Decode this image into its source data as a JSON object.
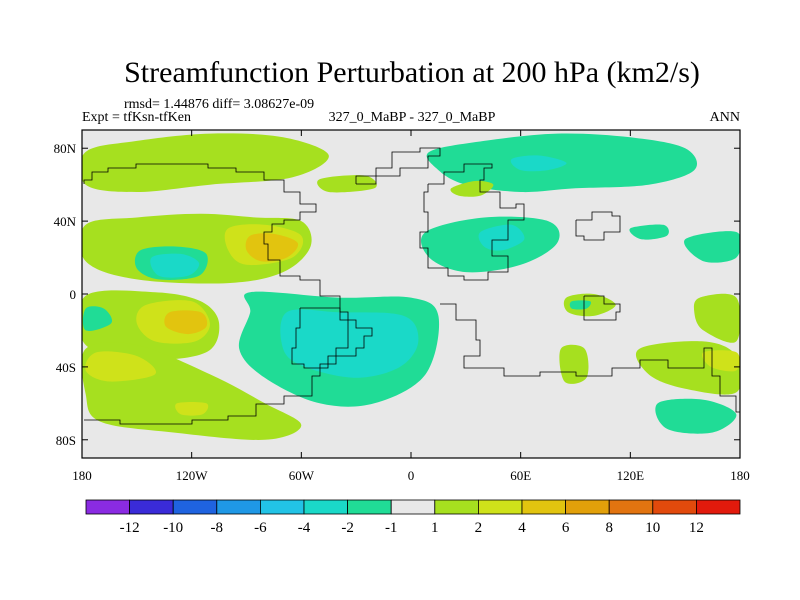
{
  "chart_data": {
    "type": "heatmap",
    "title": "Streamfunction Perturbation at 200 hPa (km2/s)",
    "stats_line": "rmsd= 1.44876 diff= 3.08627e-09",
    "left_label": "Expt = tfKsn-tfKen",
    "center_label": "327_0_MaBP - 327_0_MaBP",
    "right_label": "ANN",
    "xlim": [
      -180,
      180
    ],
    "ylim": [
      -90,
      90
    ],
    "x_ticks": [
      {
        "value": -180,
        "label": "180"
      },
      {
        "value": -120,
        "label": "120W"
      },
      {
        "value": -60,
        "label": "60W"
      },
      {
        "value": 0,
        "label": "0"
      },
      {
        "value": 60,
        "label": "60E"
      },
      {
        "value": 120,
        "label": "120E"
      },
      {
        "value": 180,
        "label": "180"
      }
    ],
    "y_ticks": [
      {
        "value": 80,
        "label": "80N"
      },
      {
        "value": 40,
        "label": "40N"
      },
      {
        "value": 0,
        "label": "0"
      },
      {
        "value": -40,
        "label": "40S"
      },
      {
        "value": -80,
        "label": "80S"
      }
    ],
    "colorbar": {
      "colors": [
        "#8a2be2",
        "#3a2bd8",
        "#1f63e0",
        "#1f98e6",
        "#22c3e6",
        "#1ad9c8",
        "#20dc96",
        "#e8e8e8",
        "#a6e01f",
        "#cfe21a",
        "#e2c40f",
        "#e2a00a",
        "#e27410",
        "#e24a0c",
        "#e21a0c"
      ],
      "labels": [
        "-12",
        "-10",
        "-8",
        "-6",
        "-4",
        "-2",
        "-1",
        "1",
        "2",
        "4",
        "6",
        "8",
        "10",
        "12"
      ]
    },
    "contour_regions": [
      {
        "level": 2,
        "color": "#a6e01f",
        "points": [
          [
            -178,
            78
          ],
          [
            -150,
            84
          ],
          [
            -110,
            88
          ],
          [
            -70,
            86
          ],
          [
            -45,
            76
          ],
          [
            -65,
            64
          ],
          [
            -110,
            60
          ],
          [
            -150,
            56
          ],
          [
            -178,
            60
          ]
        ]
      },
      {
        "level": -1,
        "color": "#20dc96",
        "points": [
          [
            10,
            78
          ],
          [
            40,
            84
          ],
          [
            80,
            88
          ],
          [
            120,
            86
          ],
          [
            150,
            80
          ],
          [
            155,
            68
          ],
          [
            130,
            60
          ],
          [
            90,
            58
          ],
          [
            60,
            56
          ],
          [
            30,
            60
          ],
          [
            15,
            68
          ]
        ]
      },
      {
        "level": -2,
        "color": "#1ad9c8",
        "points": [
          [
            55,
            74
          ],
          [
            70,
            76
          ],
          [
            85,
            72
          ],
          [
            75,
            68
          ],
          [
            60,
            68
          ]
        ]
      },
      {
        "level": 2,
        "color": "#a6e01f",
        "points": [
          [
            -178,
            38
          ],
          [
            -150,
            42
          ],
          [
            -115,
            44
          ],
          [
            -85,
            42
          ],
          [
            -60,
            40
          ],
          [
            -55,
            26
          ],
          [
            -70,
            12
          ],
          [
            -100,
            6
          ],
          [
            -150,
            8
          ],
          [
            -178,
            18
          ]
        ]
      },
      {
        "level": 4,
        "color": "#cfe21a",
        "points": [
          [
            -100,
            36
          ],
          [
            -80,
            38
          ],
          [
            -60,
            32
          ],
          [
            -65,
            20
          ],
          [
            -90,
            16
          ],
          [
            -100,
            24
          ]
        ]
      },
      {
        "level": 6,
        "color": "#e2c40f",
        "points": [
          [
            -88,
            32
          ],
          [
            -75,
            33
          ],
          [
            -62,
            28
          ],
          [
            -68,
            20
          ],
          [
            -82,
            18
          ],
          [
            -90,
            24
          ]
        ]
      },
      {
        "level": -1,
        "color": "#20dc96",
        "points": [
          [
            -148,
            24
          ],
          [
            -128,
            26
          ],
          [
            -112,
            22
          ],
          [
            -116,
            10
          ],
          [
            -138,
            8
          ],
          [
            -150,
            14
          ]
        ]
      },
      {
        "level": -2,
        "color": "#1ad9c8",
        "points": [
          [
            -142,
            20
          ],
          [
            -126,
            22
          ],
          [
            -116,
            17
          ],
          [
            -122,
            10
          ],
          [
            -138,
            10
          ]
        ]
      },
      {
        "level": 2,
        "color": "#a6e01f",
        "points": [
          [
            -50,
            63
          ],
          [
            -25,
            65
          ],
          [
            -20,
            58
          ],
          [
            -45,
            56
          ]
        ]
      },
      {
        "level": 2,
        "color": "#a6e01f",
        "points": [
          [
            22,
            58
          ],
          [
            35,
            62
          ],
          [
            45,
            60
          ],
          [
            38,
            54
          ],
          [
            26,
            54
          ]
        ]
      },
      {
        "level": -1,
        "color": "#20dc96",
        "points": [
          [
            8,
            34
          ],
          [
            40,
            42
          ],
          [
            75,
            40
          ],
          [
            80,
            28
          ],
          [
            60,
            16
          ],
          [
            30,
            12
          ],
          [
            10,
            20
          ]
        ]
      },
      {
        "level": -2,
        "color": "#1ad9c8",
        "points": [
          [
            38,
            34
          ],
          [
            55,
            38
          ],
          [
            62,
            30
          ],
          [
            50,
            24
          ],
          [
            40,
            26
          ]
        ]
      },
      {
        "level": -1,
        "color": "#20dc96",
        "points": [
          [
            120,
            36
          ],
          [
            138,
            38
          ],
          [
            140,
            32
          ],
          [
            126,
            30
          ]
        ]
      },
      {
        "level": -1,
        "color": "#20dc96",
        "points": [
          [
            150,
            30
          ],
          [
            178,
            34
          ],
          [
            178,
            20
          ],
          [
            160,
            18
          ]
        ]
      },
      {
        "level": 2,
        "color": "#a6e01f",
        "points": [
          [
            -178,
            -1
          ],
          [
            -140,
            1
          ],
          [
            -115,
            -4
          ],
          [
            -105,
            -16
          ],
          [
            -112,
            -32
          ],
          [
            -145,
            -36
          ],
          [
            -178,
            -28
          ]
        ]
      },
      {
        "level": 4,
        "color": "#cfe21a",
        "points": [
          [
            -145,
            -6
          ],
          [
            -120,
            -4
          ],
          [
            -110,
            -16
          ],
          [
            -118,
            -26
          ],
          [
            -140,
            -26
          ],
          [
            -150,
            -16
          ]
        ]
      },
      {
        "level": 6,
        "color": "#e2c40f",
        "points": [
          [
            -132,
            -10
          ],
          [
            -115,
            -10
          ],
          [
            -112,
            -18
          ],
          [
            -122,
            -22
          ],
          [
            -134,
            -18
          ]
        ]
      },
      {
        "level": -1,
        "color": "#20dc96",
        "points": [
          [
            -178,
            -8
          ],
          [
            -168,
            -8
          ],
          [
            -164,
            -16
          ],
          [
            -178,
            -20
          ]
        ]
      },
      {
        "level": -1,
        "color": "#20dc96",
        "points": [
          [
            -88,
            1
          ],
          [
            -40,
            -2
          ],
          [
            0,
            -2
          ],
          [
            15,
            -12
          ],
          [
            8,
            -44
          ],
          [
            -20,
            -60
          ],
          [
            -50,
            -60
          ],
          [
            -80,
            -46
          ],
          [
            -94,
            -30
          ],
          [
            -88,
            -10
          ]
        ]
      },
      {
        "level": -2,
        "color": "#1ad9c8",
        "points": [
          [
            -68,
            -10
          ],
          [
            -40,
            -10
          ],
          [
            -4,
            -12
          ],
          [
            4,
            -26
          ],
          [
            -6,
            -40
          ],
          [
            -30,
            -46
          ],
          [
            -58,
            -40
          ],
          [
            -70,
            -30
          ]
        ]
      },
      {
        "level": 2,
        "color": "#a6e01f",
        "points": [
          [
            -178,
            -30
          ],
          [
            -150,
            -28
          ],
          [
            -110,
            -44
          ],
          [
            -80,
            -60
          ],
          [
            -60,
            -72
          ],
          [
            -80,
            -80
          ],
          [
            -130,
            -76
          ],
          [
            -170,
            -70
          ],
          [
            -178,
            -55
          ]
        ]
      },
      {
        "level": 4,
        "color": "#cfe21a",
        "points": [
          [
            -172,
            -32
          ],
          [
            -150,
            -34
          ],
          [
            -140,
            -44
          ],
          [
            -165,
            -48
          ],
          [
            -178,
            -42
          ]
        ]
      },
      {
        "level": 4,
        "color": "#cfe21a",
        "points": [
          [
            -128,
            -60
          ],
          [
            -112,
            -60
          ],
          [
            -114,
            -66
          ],
          [
            -126,
            -66
          ]
        ]
      },
      {
        "level": 2,
        "color": "#a6e01f",
        "points": [
          [
            85,
            -2
          ],
          [
            100,
            0
          ],
          [
            112,
            -6
          ],
          [
            100,
            -12
          ],
          [
            86,
            -10
          ]
        ]
      },
      {
        "level": -1,
        "color": "#20dc96",
        "points": [
          [
            88,
            -4
          ],
          [
            98,
            -4
          ],
          [
            96,
            -8
          ],
          [
            88,
            -8
          ]
        ]
      },
      {
        "level": 2,
        "color": "#a6e01f",
        "points": [
          [
            158,
            -2
          ],
          [
            178,
            -2
          ],
          [
            178,
            -26
          ],
          [
            160,
            -20
          ],
          [
            155,
            -10
          ]
        ]
      },
      {
        "level": 2,
        "color": "#a6e01f",
        "points": [
          [
            82,
            -30
          ],
          [
            95,
            -30
          ],
          [
            96,
            -46
          ],
          [
            84,
            -48
          ]
        ]
      },
      {
        "level": 2,
        "color": "#a6e01f",
        "points": [
          [
            125,
            -30
          ],
          [
            160,
            -26
          ],
          [
            178,
            -34
          ],
          [
            178,
            -54
          ],
          [
            150,
            -52
          ],
          [
            130,
            -44
          ]
        ]
      },
      {
        "level": 4,
        "color": "#cfe21a",
        "points": [
          [
            160,
            -32
          ],
          [
            178,
            -32
          ],
          [
            178,
            -42
          ],
          [
            164,
            -40
          ]
        ]
      },
      {
        "level": -1,
        "color": "#20dc96",
        "points": [
          [
            135,
            -60
          ],
          [
            160,
            -58
          ],
          [
            178,
            -66
          ],
          [
            165,
            -76
          ],
          [
            140,
            -74
          ]
        ]
      }
    ],
    "coastlines": [
      [
        [
          -180,
          -70
        ],
        [
          -160,
          -72
        ],
        [
          -120,
          -70
        ],
        [
          -100,
          -66
        ],
        [
          -85,
          -60
        ],
        [
          -70,
          -55
        ],
        [
          -55,
          -45
        ],
        [
          -50,
          -38
        ],
        [
          -40,
          -30
        ],
        [
          -35,
          -22
        ],
        [
          -35,
          -10
        ],
        [
          -38,
          0
        ],
        [
          -50,
          8
        ],
        [
          -60,
          10
        ],
        [
          -72,
          18
        ],
        [
          -78,
          28
        ],
        [
          -80,
          33
        ],
        [
          -75,
          38
        ],
        [
          -70,
          40
        ],
        [
          -60,
          45
        ],
        [
          -53,
          50
        ],
        [
          -60,
          55
        ],
        [
          -70,
          62
        ],
        [
          -80,
          68
        ],
        [
          -95,
          70
        ],
        [
          -110,
          72
        ],
        [
          -130,
          72
        ],
        [
          -150,
          70
        ],
        [
          -165,
          66
        ],
        [
          -175,
          62
        ],
        [
          -180,
          60
        ]
      ],
      [
        [
          -60,
          -8
        ],
        [
          -45,
          -8
        ],
        [
          -38,
          -14
        ],
        [
          -30,
          -18
        ],
        [
          -22,
          -22
        ],
        [
          -25,
          -30
        ],
        [
          -30,
          -35
        ],
        [
          -45,
          -40
        ],
        [
          -58,
          -38
        ],
        [
          -65,
          -30
        ],
        [
          -62,
          -18
        ],
        [
          -60,
          -8
        ]
      ],
      [
        [
          10,
          60
        ],
        [
          18,
          68
        ],
        [
          30,
          72
        ],
        [
          45,
          70
        ],
        [
          40,
          62
        ],
        [
          38,
          55
        ],
        [
          48,
          48
        ],
        [
          58,
          50
        ],
        [
          62,
          40
        ],
        [
          52,
          30
        ],
        [
          45,
          20
        ],
        [
          52,
          12
        ],
        [
          42,
          8
        ],
        [
          30,
          10
        ],
        [
          20,
          15
        ],
        [
          10,
          25
        ],
        [
          5,
          35
        ],
        [
          10,
          45
        ],
        [
          8,
          55
        ],
        [
          10,
          60
        ]
      ],
      [
        [
          15,
          -5
        ],
        [
          25,
          -15
        ],
        [
          35,
          -25
        ],
        [
          38,
          -35
        ],
        [
          30,
          -40
        ],
        [
          50,
          -44
        ],
        [
          70,
          -42
        ],
        [
          90,
          -46
        ],
        [
          110,
          -40
        ],
        [
          125,
          -36
        ],
        [
          140,
          -40
        ],
        [
          160,
          -30
        ],
        [
          165,
          -45
        ],
        [
          170,
          -55
        ],
        [
          178,
          -65
        ],
        [
          180,
          -75
        ]
      ],
      [
        [
          95,
          -2
        ],
        [
          105,
          -6
        ],
        [
          115,
          -10
        ],
        [
          112,
          -14
        ],
        [
          100,
          -14
        ],
        [
          95,
          -8
        ],
        [
          95,
          -2
        ]
      ],
      [
        [
          90,
          40
        ],
        [
          100,
          45
        ],
        [
          110,
          42
        ],
        [
          115,
          35
        ],
        [
          105,
          30
        ],
        [
          95,
          32
        ],
        [
          90,
          40
        ]
      ],
      [
        [
          -30,
          60
        ],
        [
          -20,
          70
        ],
        [
          -10,
          78
        ],
        [
          5,
          80
        ],
        [
          15,
          76
        ],
        [
          10,
          70
        ],
        [
          -5,
          64
        ],
        [
          -30,
          60
        ]
      ]
    ]
  }
}
